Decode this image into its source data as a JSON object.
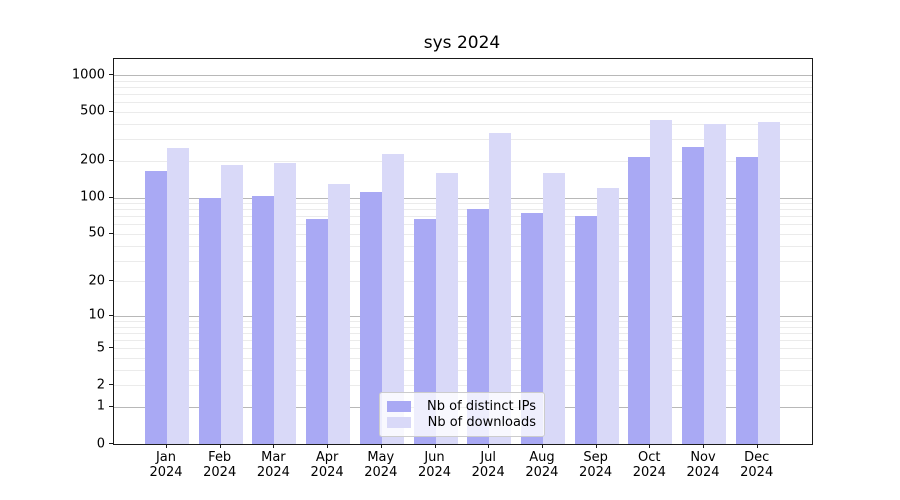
{
  "title": "sys 2024",
  "chart_data": {
    "type": "bar",
    "title": "sys 2024",
    "yscale": "log1p (symlog-like, 0 at baseline)",
    "ylim": [
      0,
      1350
    ],
    "grid": true,
    "legend_position": "lower center",
    "y_ticks": [
      0,
      1,
      2,
      5,
      10,
      20,
      50,
      100,
      200,
      500,
      1000
    ],
    "y_grid_major": [
      1,
      10,
      100,
      1000
    ],
    "y_grid_minor": [
      2,
      3,
      4,
      5,
      6,
      7,
      8,
      9,
      20,
      30,
      40,
      50,
      60,
      70,
      80,
      90,
      200,
      300,
      400,
      500,
      600,
      700,
      800,
      900
    ],
    "months": [
      "Jan",
      "Feb",
      "Mar",
      "Apr",
      "May",
      "Jun",
      "Jul",
      "Aug",
      "Sep",
      "Oct",
      "Nov",
      "Dec"
    ],
    "year": "2024",
    "categories": [
      "Jan 2024",
      "Feb 2024",
      "Mar 2024",
      "Apr 2024",
      "May 2024",
      "Jun 2024",
      "Jul 2024",
      "Aug 2024",
      "Sep 2024",
      "Oct 2024",
      "Nov 2024",
      "Dec 2024"
    ],
    "series": [
      {
        "name": "Nb of distinct IPs",
        "color": "#a9a9f4",
        "values": [
          165,
          100,
          103,
          66,
          110,
          66,
          80,
          75,
          71,
          215,
          260,
          215
        ]
      },
      {
        "name": "Nb of downloads",
        "color": "#d9d9f8",
        "values": [
          253,
          186,
          190,
          128,
          228,
          160,
          335,
          160,
          120,
          430,
          400,
          418
        ]
      }
    ]
  },
  "colors": {
    "grid_major": "#b8b8b8",
    "grid_minor": "#ebebeb",
    "axis": "#1a1a1a",
    "background": "#ffffff",
    "legend_border": "#cccccc",
    "legend_background": "rgba(255,255,255,0.8)"
  }
}
